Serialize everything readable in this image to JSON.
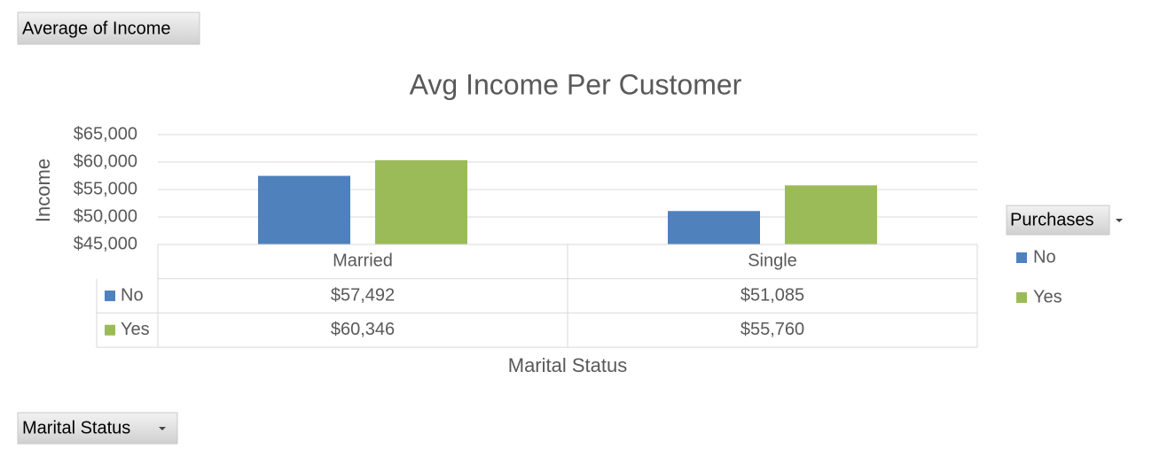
{
  "pivot_buttons": {
    "values_field": "Average of Income",
    "legend_field": "Purchases",
    "axis_field": "Marital Status"
  },
  "chart_data": {
    "type": "bar",
    "title": "Avg Income Per Customer",
    "y_label": "Income",
    "x_label": "Marital Status",
    "categories": [
      "Married",
      "Single"
    ],
    "series": [
      {
        "name": "No",
        "color": "#4f81bd",
        "values": [
          57492,
          51085
        ],
        "value_labels": [
          "$57,492",
          "$51,085"
        ]
      },
      {
        "name": "Yes",
        "color": "#9bbb59",
        "values": [
          60346,
          55760
        ],
        "value_labels": [
          "$60,346",
          "$55,760"
        ]
      }
    ],
    "ylim": [
      45000,
      65000
    ],
    "yticks": [
      {
        "value": 45000,
        "label": "$45,000"
      },
      {
        "value": 50000,
        "label": "$50,000"
      },
      {
        "value": 55000,
        "label": "$55,000"
      },
      {
        "value": 60000,
        "label": "$60,000"
      },
      {
        "value": 65000,
        "label": "$65,000"
      }
    ],
    "grid": true,
    "data_table": true
  }
}
